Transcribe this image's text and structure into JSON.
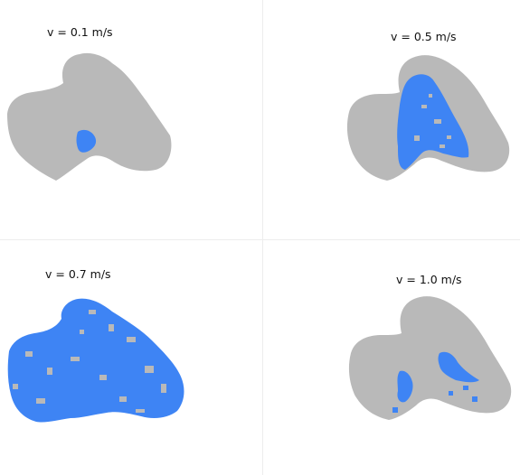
{
  "panels": [
    {
      "label": "v = 0.1 m/s"
    },
    {
      "label": "v = 0.5 m/s"
    },
    {
      "label": "v = 0.7 m/s"
    },
    {
      "label": "v = 1.0 m/s"
    }
  ],
  "colors": {
    "body": "#b9b9b9",
    "highlight": "#3e84f4",
    "divider": "#ededed",
    "background": "#ffffff"
  }
}
